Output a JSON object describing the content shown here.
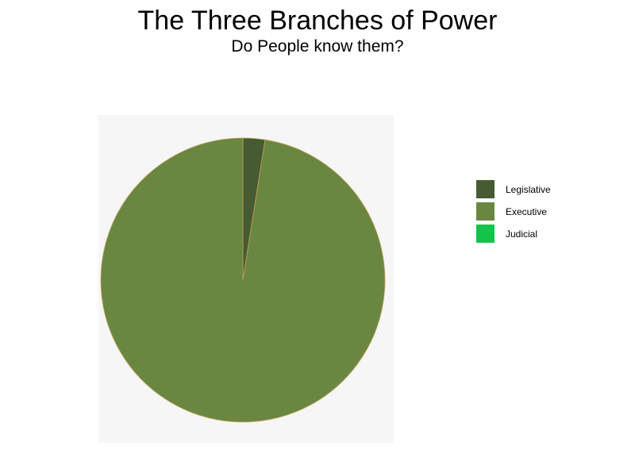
{
  "chart_data": {
    "type": "pie",
    "title": "The Three Branches of Power",
    "subtitle": "Do People know them?",
    "categories": [
      "Legislative",
      "Executive",
      "Judicial"
    ],
    "values": [
      2.5,
      97.5,
      0
    ],
    "colors": [
      "#465b31",
      "#6a8741",
      "#12c44a"
    ],
    "slice_edge_color": "#c2a15a",
    "start_angle": "top",
    "direction": "clockwise",
    "legend_position": "right",
    "plot_background": "#f6f6f6"
  }
}
